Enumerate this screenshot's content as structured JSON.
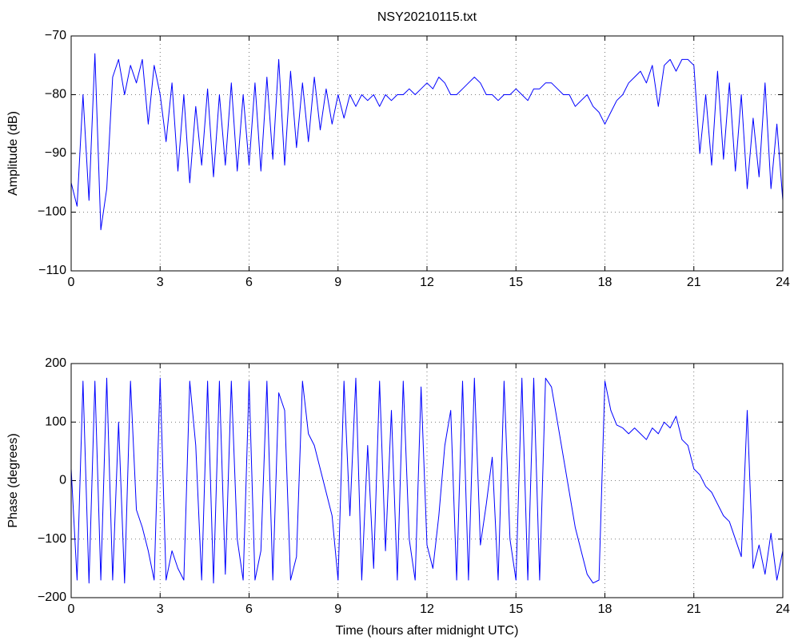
{
  "chart_data": [
    {
      "type": "line",
      "title": "NSY20210115.txt",
      "ylabel": "Amplitude (dB)",
      "grid": true,
      "xlim": [
        0,
        24
      ],
      "xticks": [
        0,
        3,
        6,
        9,
        12,
        15,
        18,
        21,
        24
      ],
      "ylim": [
        -110,
        -70
      ],
      "yticks": [
        {
          "value": -110,
          "label": "−110"
        },
        {
          "value": -100,
          "label": "−100"
        },
        {
          "value": -90,
          "label": "−90"
        },
        {
          "value": -80,
          "label": "−80"
        },
        {
          "value": -70,
          "label": "−70"
        }
      ],
      "x": [
        0,
        0.2,
        0.4,
        0.6,
        0.8,
        1,
        1.2,
        1.4,
        1.6,
        1.8,
        2,
        2.2,
        2.4,
        2.6,
        2.8,
        3,
        3.2,
        3.4,
        3.6,
        3.8,
        4,
        4.2,
        4.4,
        4.6,
        4.8,
        5,
        5.2,
        5.4,
        5.6,
        5.8,
        6,
        6.2,
        6.4,
        6.6,
        6.8,
        7,
        7.2,
        7.4,
        7.6,
        7.8,
        8,
        8.2,
        8.4,
        8.6,
        8.8,
        9,
        9.2,
        9.4,
        9.6,
        9.8,
        10,
        10.2,
        10.4,
        10.6,
        10.8,
        11,
        11.2,
        11.4,
        11.6,
        11.8,
        12,
        12.2,
        12.4,
        12.6,
        12.8,
        13,
        13.2,
        13.4,
        13.6,
        13.8,
        14,
        14.2,
        14.4,
        14.6,
        14.8,
        15,
        15.2,
        15.4,
        15.6,
        15.8,
        16,
        16.2,
        16.4,
        16.6,
        16.8,
        17,
        17.2,
        17.4,
        17.6,
        17.8,
        18,
        18.2,
        18.4,
        18.6,
        18.8,
        19,
        19.2,
        19.4,
        19.6,
        19.8,
        20,
        20.2,
        20.4,
        20.6,
        20.8,
        21,
        21.2,
        21.4,
        21.6,
        21.8,
        22,
        22.2,
        22.4,
        22.6,
        22.8,
        23,
        23.2,
        23.4,
        23.6,
        23.8,
        24
      ],
      "series": [
        {
          "color": "#0000ff",
          "values": [
            -95,
            -99,
            -80,
            -98,
            -73,
            -103,
            -96,
            -77,
            -74,
            -80,
            -75,
            -78,
            -74,
            -85,
            -75,
            -80,
            -88,
            -78,
            -93,
            -80,
            -95,
            -82,
            -92,
            -79,
            -94,
            -80,
            -92,
            -78,
            -93,
            -80,
            -92,
            -78,
            -93,
            -77,
            -91,
            -74,
            -92,
            -76,
            -89,
            -78,
            -88,
            -77,
            -86,
            -79,
            -85,
            -80,
            -84,
            -80,
            -82,
            -80,
            -81,
            -80,
            -82,
            -80,
            -81,
            -80,
            -80,
            -79,
            -80,
            -79,
            -78,
            -79,
            -77,
            -78,
            -80,
            -80,
            -79,
            -78,
            -77,
            -78,
            -80,
            -80,
            -81,
            -80,
            -80,
            -79,
            -80,
            -81,
            -79,
            -79,
            -78,
            -78,
            -79,
            -80,
            -80,
            -82,
            -81,
            -80,
            -82,
            -83,
            -85,
            -83,
            -81,
            -80,
            -78,
            -77,
            -76,
            -78,
            -75,
            -82,
            -75,
            -74,
            -76,
            -74,
            -74,
            -75,
            -90,
            -80,
            -92,
            -76,
            -91,
            -78,
            -93,
            -80,
            -96,
            -84,
            -94,
            -78,
            -96,
            -85,
            -98
          ]
        }
      ]
    },
    {
      "type": "line",
      "ylabel": "Phase (degrees)",
      "xlabel": "Time (hours after midnight UTC)",
      "grid": true,
      "xlim": [
        0,
        24
      ],
      "xticks": [
        0,
        3,
        6,
        9,
        12,
        15,
        18,
        21,
        24
      ],
      "ylim": [
        -200,
        200
      ],
      "yticks": [
        {
          "value": -200,
          "label": "−200"
        },
        {
          "value": -100,
          "label": "−100"
        },
        0,
        100,
        200
      ],
      "x": [
        0,
        0.2,
        0.4,
        0.6,
        0.8,
        1,
        1.2,
        1.4,
        1.6,
        1.8,
        2,
        2.2,
        2.4,
        2.6,
        2.8,
        3,
        3.2,
        3.4,
        3.6,
        3.8,
        4,
        4.2,
        4.4,
        4.6,
        4.8,
        5,
        5.2,
        5.4,
        5.6,
        5.8,
        6,
        6.2,
        6.4,
        6.6,
        6.8,
        7,
        7.2,
        7.4,
        7.6,
        7.8,
        8,
        8.2,
        8.4,
        8.6,
        8.8,
        9,
        9.2,
        9.4,
        9.6,
        9.8,
        10,
        10.2,
        10.4,
        10.6,
        10.8,
        11,
        11.2,
        11.4,
        11.6,
        11.8,
        12,
        12.2,
        12.4,
        12.6,
        12.8,
        13,
        13.2,
        13.4,
        13.6,
        13.8,
        14,
        14.2,
        14.4,
        14.6,
        14.8,
        15,
        15.2,
        15.4,
        15.6,
        15.8,
        16,
        16.2,
        16.4,
        16.6,
        16.8,
        17,
        17.2,
        17.4,
        17.6,
        17.8,
        18,
        18.2,
        18.4,
        18.6,
        18.8,
        19,
        19.2,
        19.4,
        19.6,
        19.8,
        20,
        20.2,
        20.4,
        20.6,
        20.8,
        21,
        21.2,
        21.4,
        21.6,
        21.8,
        22,
        22.2,
        22.4,
        22.6,
        22.8,
        23,
        23.2,
        23.4,
        23.6,
        23.8,
        24
      ],
      "series": [
        {
          "color": "#0000ff",
          "values": [
            20,
            -170,
            170,
            -175,
            170,
            -170,
            175,
            -170,
            100,
            -175,
            170,
            -50,
            -80,
            -120,
            -170,
            175,
            -170,
            -120,
            -150,
            -170,
            170,
            60,
            -170,
            170,
            -175,
            170,
            -160,
            170,
            -100,
            -170,
            170,
            -170,
            -120,
            170,
            -170,
            150,
            120,
            -170,
            -130,
            170,
            80,
            60,
            20,
            -20,
            -60,
            -170,
            170,
            -60,
            175,
            -170,
            60,
            -150,
            170,
            -120,
            120,
            -170,
            170,
            -100,
            -170,
            160,
            -110,
            -150,
            -60,
            60,
            120,
            -170,
            170,
            -170,
            175,
            -110,
            -40,
            40,
            -170,
            170,
            -100,
            -170,
            175,
            -170,
            175,
            -170,
            175,
            160,
            100,
            40,
            -20,
            -80,
            -120,
            -160,
            -175,
            -170,
            170,
            120,
            95,
            90,
            80,
            90,
            80,
            70,
            90,
            80,
            100,
            90,
            110,
            70,
            60,
            20,
            10,
            -10,
            -20,
            -40,
            -60,
            -70,
            -100,
            -130,
            120,
            -150,
            -110,
            -160,
            -90,
            -170,
            -120
          ]
        }
      ]
    }
  ]
}
